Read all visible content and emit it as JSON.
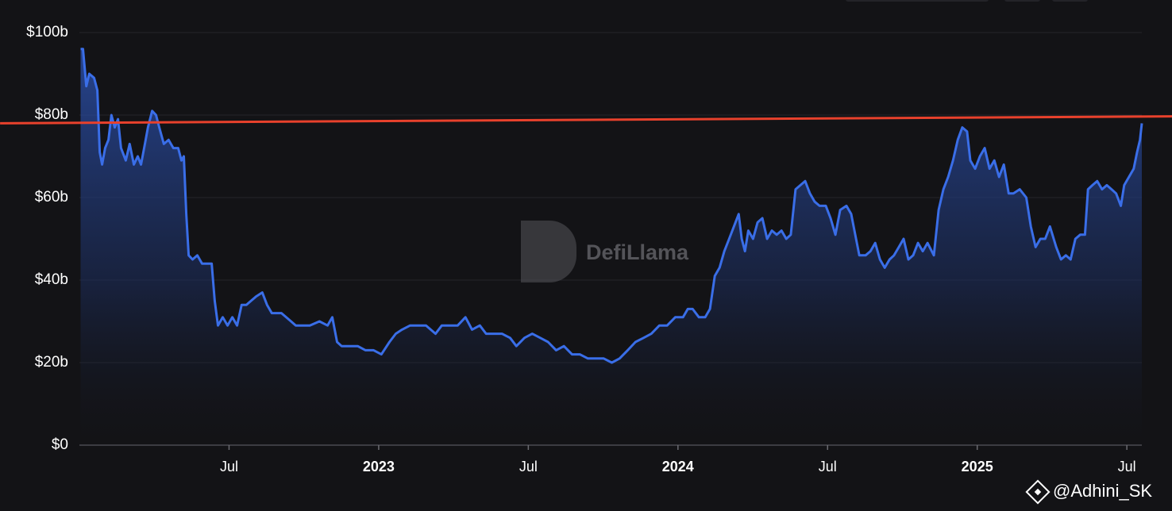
{
  "chart_data": {
    "type": "area",
    "color": "#3a6ee8",
    "grid": true,
    "xlim": [
      2022.0,
      2025.55
    ],
    "xticks": [
      {
        "value": 2022.5,
        "label": "Jul"
      },
      2023,
      {
        "value": 2023.5,
        "label": "Jul"
      },
      2024,
      {
        "value": 2024.5,
        "label": "Jul"
      },
      2025,
      {
        "value": 2025.5,
        "label": "Jul"
      }
    ],
    "ylim": [
      0,
      100
    ],
    "yticks": [
      {
        "value": 0,
        "label": "$0"
      },
      {
        "value": 20,
        "label": "$20b"
      },
      {
        "value": 40,
        "label": "$40b"
      },
      {
        "value": 60,
        "label": "$60b"
      },
      {
        "value": 80,
        "label": "$80b"
      },
      {
        "value": 100,
        "label": "$100b"
      }
    ],
    "x": [
      2022.004,
      2022.012,
      2022.023,
      2022.033,
      2022.049,
      2022.06,
      2022.068,
      2022.076,
      2022.086,
      2022.097,
      2022.107,
      2022.118,
      2022.129,
      2022.139,
      2022.155,
      2022.168,
      2022.182,
      2022.195,
      2022.206,
      2022.219,
      2022.229,
      2022.243,
      2022.256,
      2022.267,
      2022.282,
      2022.298,
      2022.314,
      2022.33,
      2022.341,
      2022.349,
      2022.357,
      2022.365,
      2022.378,
      2022.394,
      2022.41,
      2022.426,
      2022.442,
      2022.452,
      2022.463,
      2022.479,
      2022.495,
      2022.511,
      2022.527,
      2022.542,
      2022.558,
      2022.574,
      2022.59,
      2022.611,
      2022.627,
      2022.643,
      2022.659,
      2022.675,
      2022.691,
      2022.707,
      2022.723,
      2022.738,
      2022.77,
      2022.802,
      2022.829,
      2022.845,
      2022.861,
      2022.876,
      2022.903,
      2022.93,
      2022.956,
      2022.983,
      2023.009,
      2023.036,
      2023.057,
      2023.078,
      2023.105,
      2023.131,
      2023.158,
      2023.19,
      2023.211,
      2023.237,
      2023.264,
      2023.29,
      2023.312,
      2023.338,
      2023.359,
      2023.386,
      2023.412,
      2023.439,
      2023.46,
      2023.487,
      2023.513,
      2023.54,
      2023.566,
      2023.593,
      2023.619,
      2023.646,
      2023.672,
      2023.699,
      2023.725,
      2023.752,
      2023.779,
      2023.805,
      2023.832,
      2023.858,
      2023.885,
      2023.911,
      2023.938,
      2023.964,
      2023.991,
      2024.017,
      2024.033,
      2024.049,
      2024.07,
      2024.091,
      2024.107,
      2024.123,
      2024.139,
      2024.155,
      2024.171,
      2024.187,
      2024.203,
      2024.213,
      2024.224,
      2024.235,
      2024.251,
      2024.266,
      2024.282,
      2024.298,
      2024.314,
      2024.33,
      2024.346,
      2024.362,
      2024.377,
      2024.393,
      2024.409,
      2024.425,
      2024.441,
      2024.457,
      2024.473,
      2024.494,
      2024.51,
      2024.526,
      2024.542,
      2024.563,
      2024.579,
      2024.595,
      2024.606,
      2024.627,
      2024.643,
      2024.659,
      2024.675,
      2024.691,
      2024.707,
      2024.722,
      2024.738,
      2024.754,
      2024.77,
      2024.786,
      2024.802,
      2024.818,
      2024.834,
      2024.855,
      2024.871,
      2024.887,
      2024.903,
      2024.919,
      2024.935,
      2024.95,
      2024.966,
      2024.977,
      2024.993,
      2025.009,
      2025.025,
      2025.041,
      2025.057,
      2025.073,
      2025.089,
      2025.105,
      2025.121,
      2025.142,
      2025.164,
      2025.179,
      2025.195,
      2025.211,
      2025.227,
      2025.243,
      2025.264,
      2025.28,
      2025.296,
      2025.312,
      2025.328,
      2025.344,
      2025.36,
      2025.37,
      2025.385,
      2025.401,
      2025.417,
      2025.433,
      2025.449,
      2025.464,
      2025.48,
      2025.491,
      2025.507,
      2025.523,
      2025.534,
      2025.544,
      2025.55
    ],
    "values": [
      96,
      96,
      87,
      90,
      89,
      86,
      71,
      68,
      72,
      74,
      80,
      77,
      79,
      72,
      69,
      73,
      68,
      70,
      68,
      73,
      77,
      81,
      80,
      77,
      73,
      74,
      72,
      72,
      69,
      70,
      56,
      46,
      45,
      46,
      44,
      44,
      44,
      35,
      29,
      31,
      29,
      31,
      29,
      34,
      34,
      35,
      36,
      37,
      34,
      32,
      32,
      32,
      31,
      30,
      29,
      29,
      29,
      30,
      29,
      31,
      25,
      24,
      24,
      24,
      23,
      23,
      22,
      25,
      27,
      28,
      29,
      29,
      29,
      27,
      29,
      29,
      29,
      31,
      28,
      29,
      27,
      27,
      27,
      26,
      24,
      26,
      27,
      26,
      25,
      23,
      24,
      22,
      22,
      21,
      21,
      21,
      20,
      21,
      23,
      25,
      26,
      27,
      29,
      29,
      31,
      31,
      33,
      33,
      31,
      31,
      33,
      41,
      43,
      47,
      50,
      53,
      56,
      50,
      47,
      52,
      50,
      54,
      55,
      50,
      52,
      51,
      52,
      50,
      51,
      62,
      63,
      64,
      61,
      59,
      58,
      58,
      55,
      51,
      57,
      58,
      56,
      50,
      46,
      46,
      47,
      49,
      45,
      43,
      45,
      46,
      48,
      50,
      45,
      46,
      49,
      47,
      49,
      46,
      57,
      62,
      65,
      69,
      74,
      77,
      76,
      69,
      67,
      70,
      72,
      67,
      69,
      65,
      68,
      61,
      61,
      62,
      60,
      53,
      48,
      50,
      50,
      53,
      48,
      45,
      46,
      45,
      50,
      51,
      51,
      62,
      63,
      64,
      62,
      63,
      62,
      61,
      58,
      63,
      65,
      67,
      71,
      74,
      78
    ],
    "reference_line": {
      "color": "#e8412c",
      "x": [
        2021.735,
        2025.651
      ],
      "values": [
        78,
        79.7
      ]
    }
  },
  "watermark": "DefiLlama",
  "credit": "@Adhini_SK"
}
